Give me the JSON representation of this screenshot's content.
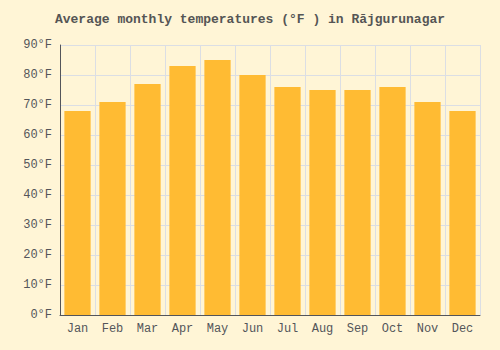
{
  "chart_data": {
    "type": "bar",
    "title": "Average monthly temperatures (°F ) in Rājgurunagar",
    "categories": [
      "Jan",
      "Feb",
      "Mar",
      "Apr",
      "May",
      "Jun",
      "Jul",
      "Aug",
      "Sep",
      "Oct",
      "Nov",
      "Dec"
    ],
    "values": [
      68,
      71,
      77,
      83,
      85,
      80,
      76,
      75,
      75,
      76,
      71,
      68
    ],
    "color": "#FFBB33",
    "ylim": [
      0,
      90
    ],
    "yticks": [
      {
        "value": 0,
        "label": "0°F"
      },
      {
        "value": 10,
        "label": "10°F"
      },
      {
        "value": 20,
        "label": "20°F"
      },
      {
        "value": 30,
        "label": "30°F"
      },
      {
        "value": 40,
        "label": "40°F"
      },
      {
        "value": 50,
        "label": "50°F"
      },
      {
        "value": 60,
        "label": "60°F"
      },
      {
        "value": 70,
        "label": "70°F"
      },
      {
        "value": 80,
        "label": "80°F"
      },
      {
        "value": 90,
        "label": "90°F"
      }
    ],
    "grid": true
  }
}
